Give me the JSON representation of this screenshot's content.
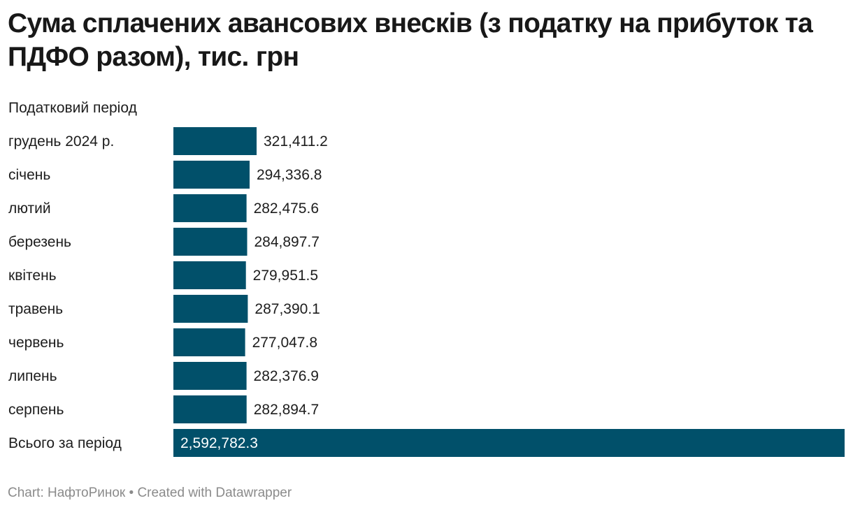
{
  "chart_data": {
    "type": "bar",
    "orientation": "horizontal",
    "title": "Сума сплачених авансових внесків (з податку на прибуток та ПДФО разом), тис. грн",
    "column_header": "Податковий період",
    "categories": [
      "грудень 2024 р.",
      "січень",
      "лютий",
      "березень",
      "квітень",
      "травень",
      "червень",
      "липень",
      "серпень",
      "Всього за період"
    ],
    "values": [
      321411.2,
      294336.8,
      282475.6,
      284897.7,
      279951.5,
      287390.1,
      277047.8,
      282376.9,
      282894.7,
      2592782.3
    ],
    "value_labels": [
      "321,411.2",
      "294,336.8",
      "282,475.6",
      "284,897.7",
      "279,951.5",
      "287,390.1",
      "277,047.8",
      "282,376.9",
      "282,894.7",
      "2,592,782.3"
    ],
    "bar_color": "#01506a",
    "xlim": [
      0,
      2592782.3
    ],
    "grid": false
  },
  "footer": {
    "text": "Chart: НафтоРинок • Created with Datawrapper"
  }
}
